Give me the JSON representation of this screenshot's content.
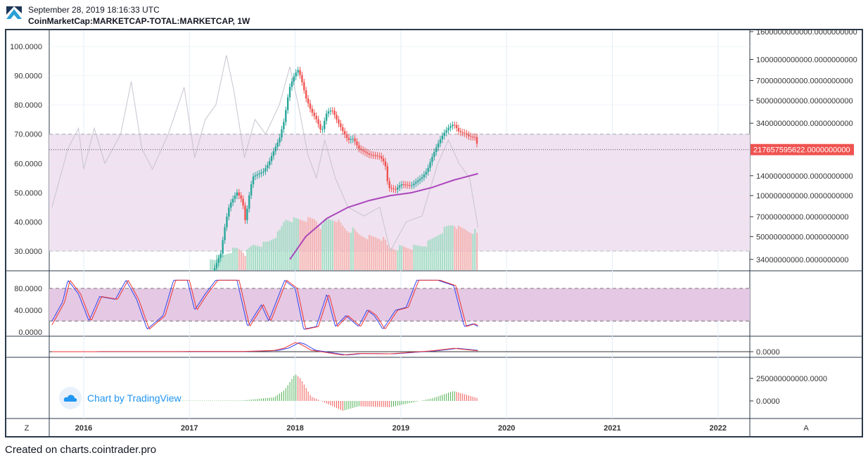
{
  "header": {
    "timestamp": "September 28, 2019 18:16:33 UTC",
    "symbol": "CoinMarketCap:MARKETCAP-TOTAL:MARKETCAP, 1W"
  },
  "footer": "Created on charts.cointrader.pro",
  "watermark": "Chart by TradingView",
  "buttons": {
    "left": "Z",
    "right": "A"
  },
  "colors": {
    "up": "#26a69a",
    "down": "#ef5350",
    "ma": "#ab47bc",
    "band": "#f0e2f0",
    "stochBand": "#e4c8e4",
    "last": "#ef5350"
  },
  "chart_data": {
    "type": "candlestick",
    "title": "CoinMarketCap:MARKETCAP-TOTAL:MARKETCAP, 1W",
    "x_ticks": [
      "2016",
      "2017",
      "2018",
      "2019",
      "2020",
      "2021",
      "2022"
    ],
    "price_axis": {
      "scale": "log",
      "ticks": [
        "1600000000000.0000000000",
        "1000000000000.0000000000",
        "700000000000.0000000000",
        "500000000000.0000000000",
        "340000000000.0000000000",
        "140000000000.0000000000",
        "100000000000.0000000000",
        "70000000000.0000000000",
        "50000000000.0000000000",
        "34000000000.0000000000"
      ],
      "last_value": "217657595622.0000000000"
    },
    "close_billions": [
      [
        2017.2,
        25
      ],
      [
        2017.3,
        40
      ],
      [
        2017.38,
        90
      ],
      [
        2017.45,
        110
      ],
      [
        2017.5,
        95
      ],
      [
        2017.53,
        65
      ],
      [
        2017.6,
        140
      ],
      [
        2017.7,
        150
      ],
      [
        2017.75,
        170
      ],
      [
        2017.85,
        250
      ],
      [
        2017.9,
        350
      ],
      [
        2017.95,
        600
      ],
      [
        2018.0,
        750
      ],
      [
        2018.03,
        800
      ],
      [
        2018.1,
        500
      ],
      [
        2018.15,
        400
      ],
      [
        2018.2,
        350
      ],
      [
        2018.25,
        280
      ],
      [
        2018.3,
        400
      ],
      [
        2018.35,
        420
      ],
      [
        2018.4,
        350
      ],
      [
        2018.45,
        300
      ],
      [
        2018.5,
        260
      ],
      [
        2018.55,
        270
      ],
      [
        2018.6,
        230
      ],
      [
        2018.7,
        210
      ],
      [
        2018.8,
        205
      ],
      [
        2018.85,
        180
      ],
      [
        2018.88,
        120
      ],
      [
        2018.95,
        115
      ],
      [
        2019.0,
        125
      ],
      [
        2019.1,
        120
      ],
      [
        2019.2,
        135
      ],
      [
        2019.25,
        150
      ],
      [
        2019.35,
        230
      ],
      [
        2019.4,
        270
      ],
      [
        2019.45,
        300
      ],
      [
        2019.5,
        320
      ],
      [
        2019.55,
        280
      ],
      [
        2019.6,
        275
      ],
      [
        2019.65,
        260
      ],
      [
        2019.7,
        260
      ],
      [
        2019.73,
        218
      ]
    ],
    "ma_billions": [
      [
        2017.95,
        34
      ],
      [
        2018.1,
        50
      ],
      [
        2018.3,
        68
      ],
      [
        2018.5,
        82
      ],
      [
        2018.7,
        92
      ],
      [
        2018.9,
        100
      ],
      [
        2019.1,
        105
      ],
      [
        2019.3,
        115
      ],
      [
        2019.5,
        130
      ],
      [
        2019.73,
        145
      ]
    ],
    "overlay_axis": {
      "ticks": [
        "100.0000",
        "90.0000",
        "80.0000",
        "70.0000",
        "60.0000",
        "50.0000",
        "40.0000",
        "30.0000"
      ],
      "range": [
        30,
        100
      ],
      "band": [
        30,
        70
      ]
    },
    "overlay_line": [
      [
        2015.7,
        45
      ],
      [
        2015.85,
        65
      ],
      [
        2015.95,
        72
      ],
      [
        2016.0,
        58
      ],
      [
        2016.1,
        72
      ],
      [
        2016.2,
        60
      ],
      [
        2016.35,
        70
      ],
      [
        2016.45,
        88
      ],
      [
        2016.55,
        65
      ],
      [
        2016.65,
        58
      ],
      [
        2016.8,
        70
      ],
      [
        2016.95,
        86
      ],
      [
        2017.05,
        62
      ],
      [
        2017.15,
        75
      ],
      [
        2017.25,
        80
      ],
      [
        2017.35,
        97
      ],
      [
        2017.42,
        85
      ],
      [
        2017.52,
        62
      ],
      [
        2017.62,
        75
      ],
      [
        2017.72,
        70
      ],
      [
        2017.85,
        80
      ],
      [
        2017.95,
        93
      ],
      [
        2018.03,
        80
      ],
      [
        2018.12,
        63
      ],
      [
        2018.2,
        55
      ],
      [
        2018.28,
        68
      ],
      [
        2018.38,
        55
      ],
      [
        2018.5,
        45
      ],
      [
        2018.65,
        42
      ],
      [
        2018.8,
        45
      ],
      [
        2018.9,
        30
      ],
      [
        2019.05,
        40
      ],
      [
        2019.2,
        42
      ],
      [
        2019.35,
        60
      ],
      [
        2019.45,
        68
      ],
      [
        2019.55,
        60
      ],
      [
        2019.65,
        55
      ],
      [
        2019.73,
        38
      ]
    ],
    "stoch": {
      "ticks": [
        "80.0000",
        "40.0000",
        "0.0000"
      ],
      "band": [
        20,
        80
      ],
      "k": [
        [
          2015.7,
          20
        ],
        [
          2015.8,
          55
        ],
        [
          2015.85,
          95
        ],
        [
          2015.95,
          70
        ],
        [
          2016.05,
          20
        ],
        [
          2016.15,
          65
        ],
        [
          2016.3,
          60
        ],
        [
          2016.4,
          95
        ],
        [
          2016.5,
          60
        ],
        [
          2016.6,
          5
        ],
        [
          2016.75,
          30
        ],
        [
          2016.85,
          95
        ],
        [
          2016.98,
          95
        ],
        [
          2017.05,
          40
        ],
        [
          2017.15,
          70
        ],
        [
          2017.25,
          95
        ],
        [
          2017.45,
          95
        ],
        [
          2017.55,
          10
        ],
        [
          2017.68,
          50
        ],
        [
          2017.75,
          20
        ],
        [
          2017.9,
          95
        ],
        [
          2018.0,
          80
        ],
        [
          2018.08,
          5
        ],
        [
          2018.2,
          10
        ],
        [
          2018.3,
          70
        ],
        [
          2018.38,
          10
        ],
        [
          2018.48,
          30
        ],
        [
          2018.6,
          10
        ],
        [
          2018.68,
          40
        ],
        [
          2018.75,
          30
        ],
        [
          2018.83,
          5
        ],
        [
          2018.95,
          40
        ],
        [
          2019.05,
          45
        ],
        [
          2019.15,
          95
        ],
        [
          2019.35,
          95
        ],
        [
          2019.5,
          85
        ],
        [
          2019.6,
          10
        ],
        [
          2019.68,
          15
        ],
        [
          2019.73,
          10
        ]
      ]
    },
    "macd": {
      "ticks": [
        "0.0000"
      ]
    },
    "histogram": {
      "ticks": [
        "250000000000.0000",
        "0.0000"
      ],
      "values_billions": [
        [
          2015.7,
          0
        ],
        [
          2017.5,
          5
        ],
        [
          2017.8,
          40
        ],
        [
          2017.9,
          120
        ],
        [
          2018.0,
          300
        ],
        [
          2018.05,
          250
        ],
        [
          2018.15,
          50
        ],
        [
          2018.3,
          -30
        ],
        [
          2018.45,
          -110
        ],
        [
          2018.6,
          -60
        ],
        [
          2018.9,
          -70
        ],
        [
          2019.1,
          -20
        ],
        [
          2019.3,
          30
        ],
        [
          2019.5,
          110
        ],
        [
          2019.73,
          30
        ]
      ]
    }
  }
}
